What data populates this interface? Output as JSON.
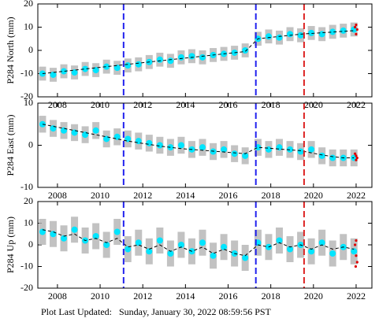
{
  "chart_data": [
    {
      "type": "line",
      "ylabel": "P284 North (mm)",
      "x": [
        2007.3,
        2007.8,
        2008.3,
        2008.8,
        2009.3,
        2009.8,
        2010.3,
        2010.8,
        2011.3,
        2011.8,
        2012.3,
        2012.8,
        2013.3,
        2013.8,
        2014.3,
        2014.8,
        2015.3,
        2015.8,
        2016.3,
        2016.8,
        2017.4,
        2017.9,
        2018.4,
        2018.9,
        2019.4,
        2019.9,
        2020.4,
        2020.9,
        2021.4,
        2021.9
      ],
      "series": [
        {
          "color": "#00e5ff",
          "marker": "circle",
          "error_color": "#b4b4b4",
          "values": [
            -10,
            -10.5,
            -9,
            -9.5,
            -8,
            -8.5,
            -7,
            -7.5,
            -6.5,
            -6,
            -5,
            -4,
            -4.5,
            -3,
            -2.5,
            -3,
            -2,
            -1.5,
            -1,
            0,
            5,
            6,
            5.5,
            7,
            6.5,
            7.5,
            7,
            8,
            8.5,
            9
          ],
          "errors": [
            3,
            3,
            3,
            3,
            3,
            3,
            3,
            3,
            3,
            3,
            3,
            3,
            3,
            3,
            3,
            3,
            3,
            3,
            3,
            3,
            3,
            3,
            3,
            3,
            3,
            3,
            3,
            3,
            3,
            3
          ]
        },
        {
          "color": "#000000",
          "dashed": true,
          "values": [
            -10,
            -9.5,
            -9,
            -8.5,
            -8,
            -7.5,
            -7,
            -6.5,
            -6,
            -5.5,
            -5,
            -4.5,
            -4,
            -3.5,
            -3,
            -2.5,
            -2,
            -1.5,
            -1,
            -0.5,
            5,
            5.5,
            6,
            6.5,
            7,
            7.3,
            7.6,
            7.9,
            8.2,
            8.5
          ]
        },
        {
          "color": "#dd0000",
          "marker": "circle",
          "x": [
            2021.95,
            2022.0,
            2022.05,
            2022.0
          ],
          "values": [
            10,
            7,
            9,
            11
          ]
        }
      ],
      "vlines": [
        {
          "value": 2011.1,
          "color": "#2222ee"
        },
        {
          "value": 2017.3,
          "color": "#2222ee"
        },
        {
          "value": 2019.56,
          "color": "#dd2222"
        }
      ],
      "xlim": [
        2007.08,
        2022.74
      ],
      "xticks": [
        2008,
        2010,
        2012,
        2014,
        2016,
        2018,
        2020,
        2022
      ],
      "ylim": [
        -20,
        20
      ],
      "yticks": [
        -20,
        -10,
        0,
        10,
        20
      ]
    },
    {
      "type": "line",
      "ylabel": "P284 East (mm)",
      "x": [
        2007.3,
        2007.8,
        2008.3,
        2008.8,
        2009.3,
        2009.8,
        2010.3,
        2010.8,
        2011.3,
        2011.8,
        2012.3,
        2012.8,
        2013.3,
        2013.8,
        2014.3,
        2014.8,
        2015.3,
        2015.8,
        2016.3,
        2016.8,
        2017.4,
        2017.9,
        2018.4,
        2018.9,
        2019.4,
        2019.9,
        2020.4,
        2020.9,
        2021.4,
        2021.9
      ],
      "series": [
        {
          "color": "#00e5ff",
          "marker": "circle",
          "error_color": "#b4b4b4",
          "values": [
            5,
            4,
            3.5,
            3,
            2.5,
            3.5,
            1.5,
            2,
            1.5,
            1,
            0.5,
            0,
            -0.5,
            0,
            -1,
            -0.5,
            -1.5,
            -1,
            -2,
            -2.5,
            -0.5,
            -1,
            -0.5,
            -1,
            -1.5,
            -1,
            -2.5,
            -3,
            -3,
            -3
          ],
          "errors": [
            2,
            2,
            2,
            2,
            2,
            2,
            2,
            2,
            2,
            2,
            2,
            2,
            2,
            2,
            2,
            2,
            2,
            2,
            2,
            2,
            2,
            2,
            2,
            2,
            2,
            2,
            2,
            2,
            2,
            2
          ]
        },
        {
          "color": "#000000",
          "dashed": true,
          "values": [
            5,
            4.5,
            4,
            3.5,
            3,
            2.5,
            2,
            1.5,
            1,
            0.6,
            0.2,
            -0.2,
            -0.5,
            -0.8,
            -1,
            -1.2,
            -1.4,
            -1.6,
            -1.8,
            -2,
            -0.5,
            -0.7,
            -0.9,
            -1.1,
            -1.3,
            -1.8,
            -2.3,
            -2.7,
            -3,
            -3
          ]
        },
        {
          "color": "#dd0000",
          "marker": "circle",
          "x": [
            2021.95,
            2022.0,
            2022.05,
            2022.0
          ],
          "values": [
            -2,
            -3.5,
            -3,
            -2.5
          ]
        }
      ],
      "vlines": [
        {
          "value": 2011.1,
          "color": "#2222ee"
        },
        {
          "value": 2017.3,
          "color": "#2222ee"
        },
        {
          "value": 2019.56,
          "color": "#dd2222"
        }
      ],
      "xlim": [
        2007.08,
        2022.74
      ],
      "xticks": [
        2008,
        2010,
        2012,
        2014,
        2016,
        2018,
        2020,
        2022
      ],
      "ylim": [
        -10,
        10
      ],
      "yticks": [
        -10,
        0,
        10
      ]
    },
    {
      "type": "line",
      "ylabel": "P284 Up (mm)",
      "x": [
        2007.3,
        2007.8,
        2008.3,
        2008.8,
        2009.3,
        2009.8,
        2010.3,
        2010.8,
        2011.3,
        2011.8,
        2012.3,
        2012.8,
        2013.3,
        2013.8,
        2014.3,
        2014.8,
        2015.3,
        2015.8,
        2016.3,
        2016.8,
        2017.4,
        2017.9,
        2018.4,
        2018.9,
        2019.4,
        2019.9,
        2020.4,
        2020.9,
        2021.4,
        2021.9
      ],
      "series": [
        {
          "color": "#00e5ff",
          "marker": "circle",
          "error_color": "#b4b4b4",
          "values": [
            6,
            5,
            3,
            7,
            2,
            4,
            0,
            6,
            -2,
            1,
            -3,
            2,
            -4,
            0,
            -3,
            1,
            -5,
            -1,
            -4,
            -6,
            1,
            -1,
            2,
            -2,
            0,
            -3,
            1,
            -4,
            -1,
            -3
          ],
          "errors": [
            6,
            6,
            6,
            6,
            6,
            6,
            6,
            6,
            6,
            6,
            6,
            6,
            6,
            6,
            6,
            6,
            6,
            6,
            6,
            6,
            6,
            6,
            6,
            6,
            6,
            6,
            6,
            6,
            6,
            6
          ]
        },
        {
          "color": "#000000",
          "dashed": true,
          "values": [
            7,
            6,
            4,
            5,
            2,
            3,
            1,
            3,
            -1,
            0,
            -2,
            0,
            -3,
            -1,
            -3,
            -1,
            -4,
            -2,
            -4,
            -5,
            0,
            -1,
            1,
            -1,
            0,
            -2,
            0,
            -2,
            -1,
            -2
          ]
        },
        {
          "color": "#dd0000",
          "marker": "circle",
          "x": [
            2021.95,
            2022.0,
            2022.05,
            2022.0,
            2021.98
          ],
          "values": [
            0,
            -5,
            -8,
            2,
            -10
          ]
        }
      ],
      "vlines": [
        {
          "value": 2011.1,
          "color": "#2222ee"
        },
        {
          "value": 2017.3,
          "color": "#2222ee"
        },
        {
          "value": 2019.56,
          "color": "#dd2222"
        }
      ],
      "xlim": [
        2007.08,
        2022.74
      ],
      "xticks": [
        2008,
        2010,
        2012,
        2014,
        2016,
        2018,
        2020,
        2022
      ],
      "ylim": [
        -20,
        20
      ],
      "yticks": [
        -20,
        -10,
        0,
        10,
        20
      ]
    }
  ],
  "footer": "Plot Last Updated:   Sunday, January 30, 2022 08:59:56 PST"
}
